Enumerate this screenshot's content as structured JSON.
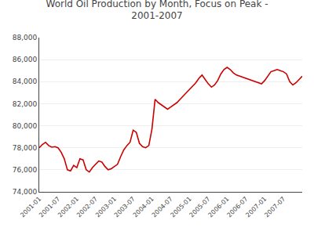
{
  "chart_data": {
    "type": "line",
    "title": "World Oil Production by Month, Focus on Peak -\n2001-2007",
    "color": "#cc0000",
    "categories": [
      "2001-01",
      null,
      null,
      null,
      null,
      null,
      "2001-07",
      null,
      null,
      null,
      null,
      null,
      "2002-01",
      null,
      null,
      null,
      null,
      null,
      "2002-07",
      null,
      null,
      null,
      null,
      null,
      "2003-01",
      null,
      null,
      null,
      null,
      null,
      "2003-07",
      null,
      null,
      null,
      null,
      null,
      "2004-01",
      null,
      null,
      null,
      null,
      null,
      "2004-07",
      null,
      null,
      null,
      null,
      null,
      "2005-01",
      null,
      null,
      null,
      null,
      null,
      "2005-07",
      null,
      null,
      null,
      null,
      null,
      "2006-01",
      null,
      null,
      null,
      null,
      null,
      "2006-07",
      null,
      null,
      null,
      null,
      null,
      "2007-01",
      null,
      null,
      null,
      null,
      null,
      "2007-07",
      null,
      null,
      null,
      null,
      null,
      null
    ],
    "values": [
      78000,
      78300,
      78500,
      78200,
      78050,
      78100,
      78000,
      77600,
      77000,
      76000,
      75900,
      76400,
      76200,
      77000,
      76900,
      76000,
      75800,
      76200,
      76500,
      76800,
      76700,
      76300,
      76000,
      76100,
      76300,
      76500,
      77200,
      77800,
      78200,
      78500,
      79600,
      79400,
      78400,
      78100,
      78000,
      78200,
      79700,
      82400,
      82100,
      81900,
      81700,
      81500,
      81700,
      81900,
      82100,
      82400,
      82700,
      83000,
      83300,
      83600,
      83900,
      84300,
      84600,
      84200,
      83800,
      83500,
      83700,
      84100,
      84700,
      85100,
      85300,
      85100,
      84800,
      84600,
      84500,
      84400,
      84300,
      84200,
      84100,
      84000,
      83900,
      83800,
      84100,
      84500,
      84900,
      85000,
      85100,
      85000,
      84900,
      84700,
      84000,
      83700,
      83900,
      84200,
      84500
    ],
    "ylim": [
      74000,
      88000
    ],
    "yticks": [
      {
        "value": 74000,
        "label": "74,000"
      },
      {
        "value": 76000,
        "label": "76,000"
      },
      {
        "value": 78000,
        "label": "78,000"
      },
      {
        "value": 80000,
        "label": "80,000"
      },
      {
        "value": 82000,
        "label": "82,000"
      },
      {
        "value": 84000,
        "label": "84,000"
      },
      {
        "value": 86000,
        "label": "86,000"
      },
      {
        "value": 88000,
        "label": "88,000"
      }
    ],
    "grid": true
  }
}
